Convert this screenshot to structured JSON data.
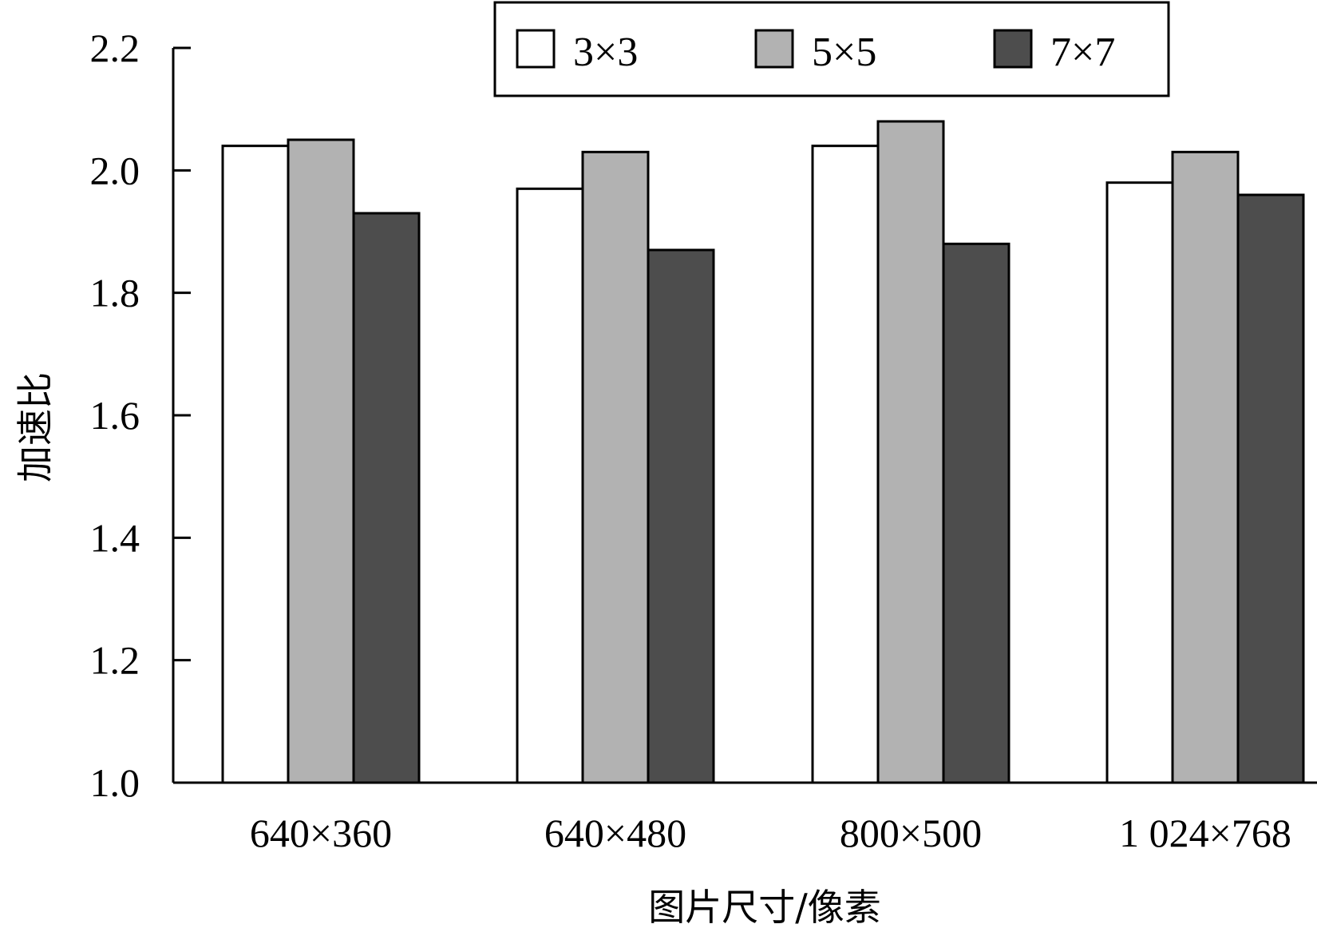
{
  "chart_data": {
    "type": "bar",
    "categories": [
      "640×360",
      "640×480",
      "800×500",
      "1 024×768"
    ],
    "series": [
      {
        "name": "3×3",
        "values": [
          2.04,
          1.97,
          2.04,
          1.98
        ],
        "color": "#ffffff"
      },
      {
        "name": "5×5",
        "values": [
          2.05,
          2.03,
          2.08,
          2.03
        ],
        "color": "#b2b2b2"
      },
      {
        "name": "7×7",
        "values": [
          1.93,
          1.87,
          1.88,
          1.96
        ],
        "color": "#4d4d4d"
      }
    ],
    "xlabel": "图片尺寸/像素",
    "ylabel": "加速比",
    "ylim": [
      1.0,
      2.2
    ],
    "yticks": [
      "1.0",
      "1.2",
      "1.4",
      "1.6",
      "1.8",
      "2.0",
      "2.2"
    ],
    "grid": false,
    "legend": "top-right"
  }
}
